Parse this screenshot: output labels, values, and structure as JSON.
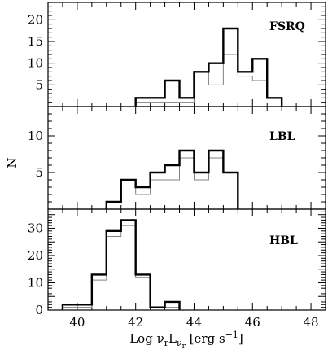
{
  "chart_data": {
    "type": "histogram",
    "xlabel": "Log νrLνr [erg s−1]",
    "ylabel": "N",
    "xlim": [
      39,
      48.5
    ],
    "xticks": [
      "40",
      "42",
      "44",
      "46",
      "48"
    ],
    "bin_width": 0.5,
    "colors": {
      "all": "#000000",
      "subset": "#808080"
    },
    "panels": [
      {
        "label": "FSRQ",
        "ylim": [
          0,
          24
        ],
        "yticks": [
          "5",
          "10",
          "15",
          "20"
        ],
        "series": [
          {
            "style": "thick-black",
            "bins": [
              [
                42,
                42.5,
                2
              ],
              [
                42.5,
                43,
                2
              ],
              [
                43,
                43.5,
                6
              ],
              [
                43.5,
                44,
                2
              ],
              [
                44,
                44.5,
                8
              ],
              [
                44.5,
                45,
                10
              ],
              [
                45,
                45.5,
                18
              ],
              [
                45.5,
                46,
                8
              ],
              [
                46,
                46.5,
                11
              ],
              [
                46.5,
                47,
                2
              ]
            ]
          },
          {
            "style": "thin-gray",
            "bins": [
              [
                42,
                42.5,
                1
              ],
              [
                42.5,
                43,
                1
              ],
              [
                43,
                43.5,
                1
              ],
              [
                43.5,
                44,
                1
              ],
              [
                44,
                44.5,
                8
              ],
              [
                44.5,
                45,
                5
              ],
              [
                45,
                45.5,
                12
              ],
              [
                45.5,
                46,
                7
              ],
              [
                46,
                46.5,
                6
              ],
              [
                46.5,
                47,
                2
              ]
            ]
          }
        ]
      },
      {
        "label": "LBL",
        "ylim": [
          0,
          14
        ],
        "yticks": [
          "5",
          "10"
        ],
        "series": [
          {
            "style": "thick-black",
            "bins": [
              [
                41,
                41.5,
                1
              ],
              [
                41.5,
                42,
                4
              ],
              [
                42,
                42.5,
                3
              ],
              [
                42.5,
                43,
                5
              ],
              [
                43,
                43.5,
                6
              ],
              [
                43.5,
                44,
                8
              ],
              [
                44,
                44.5,
                5
              ],
              [
                44.5,
                45,
                8
              ],
              [
                45,
                45.5,
                5
              ]
            ]
          },
          {
            "style": "thin-gray",
            "bins": [
              [
                41,
                41.5,
                1
              ],
              [
                41.5,
                42,
                4
              ],
              [
                42,
                42.5,
                2
              ],
              [
                42.5,
                43,
                4
              ],
              [
                43,
                43.5,
                4
              ],
              [
                43.5,
                44,
                7
              ],
              [
                44,
                44.5,
                4
              ],
              [
                44.5,
                45,
                7
              ],
              [
                45,
                45.5,
                5
              ]
            ]
          }
        ]
      },
      {
        "label": "HBL",
        "ylim": [
          0,
          37
        ],
        "yticks": [
          "0",
          "10",
          "20",
          "30"
        ],
        "series": [
          {
            "style": "thick-black",
            "bins": [
              [
                39.5,
                40,
                2
              ],
              [
                40,
                40.5,
                2
              ],
              [
                40.5,
                41,
                13
              ],
              [
                41,
                41.5,
                29
              ],
              [
                41.5,
                42,
                33
              ],
              [
                42,
                42.5,
                13
              ],
              [
                42.5,
                43,
                1
              ],
              [
                43,
                43.5,
                3
              ]
            ]
          },
          {
            "style": "thin-gray",
            "bins": [
              [
                39.5,
                40,
                1
              ],
              [
                40,
                40.5,
                1
              ],
              [
                40.5,
                41,
                11
              ],
              [
                41,
                41.5,
                27
              ],
              [
                41.5,
                42,
                31
              ],
              [
                42,
                42.5,
                12
              ],
              [
                42.5,
                43,
                1
              ],
              [
                43,
                43.5,
                1
              ]
            ]
          }
        ]
      }
    ]
  }
}
